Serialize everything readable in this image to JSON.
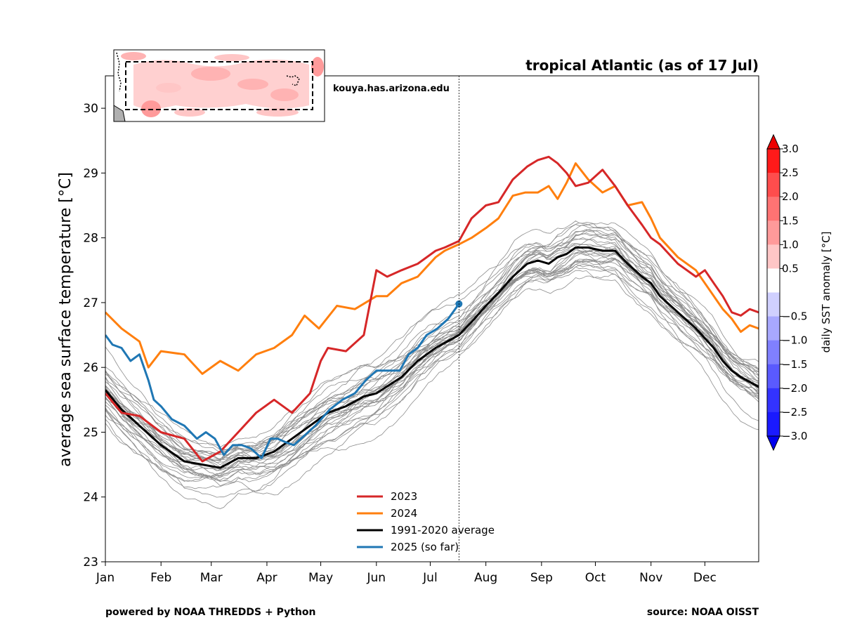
{
  "chart_data": {
    "type": "line",
    "title": "tropical Atlantic (as of 17 Jul)",
    "ylabel": "average sea surface temperature [°C]",
    "xlabel": "",
    "ylim": [
      23,
      30.5
    ],
    "yticks": [
      "23",
      "24",
      "25",
      "26",
      "27",
      "28",
      "29",
      "30"
    ],
    "xlim_day": [
      1,
      365
    ],
    "months": [
      "Jan",
      "Feb",
      "Mar",
      "Apr",
      "May",
      "Jun",
      "Jul",
      "Aug",
      "Sep",
      "Oct",
      "Nov",
      "Dec"
    ],
    "current_day_marker": 198,
    "legend_placement": "lower-center",
    "grid": false,
    "series": [
      {
        "name": "2023",
        "color": "#d62728",
        "width": 3,
        "x": [
          1,
          10,
          20,
          32,
          45,
          55,
          65,
          75,
          85,
          95,
          105,
          115,
          121,
          125,
          135,
          145,
          152,
          158,
          166,
          175,
          185,
          190,
          198,
          205,
          213,
          220,
          228,
          236,
          242,
          248,
          253,
          258,
          263,
          270,
          278,
          285,
          292,
          300,
          305,
          310,
          320,
          330,
          335,
          340,
          345,
          350,
          355,
          360,
          365
        ],
        "y": [
          25.6,
          25.3,
          25.25,
          25.0,
          24.9,
          24.55,
          24.7,
          25.0,
          25.3,
          25.5,
          25.3,
          25.6,
          26.1,
          26.3,
          26.25,
          26.5,
          27.5,
          27.4,
          27.5,
          27.6,
          27.8,
          27.85,
          27.95,
          28.3,
          28.5,
          28.55,
          28.9,
          29.1,
          29.2,
          29.25,
          29.15,
          29.0,
          28.8,
          28.85,
          29.05,
          28.8,
          28.5,
          28.2,
          28.0,
          27.9,
          27.6,
          27.4,
          27.5,
          27.3,
          27.1,
          26.85,
          26.8,
          26.9,
          26.85
        ]
      },
      {
        "name": "2024",
        "color": "#ff7f0e",
        "width": 3,
        "x": [
          1,
          10,
          20,
          25,
          32,
          45,
          55,
          65,
          75,
          85,
          95,
          105,
          112,
          120,
          130,
          140,
          152,
          158,
          166,
          175,
          185,
          190,
          198,
          205,
          213,
          220,
          228,
          235,
          242,
          248,
          253,
          258,
          263,
          270,
          278,
          285,
          292,
          300,
          305,
          310,
          320,
          330,
          340,
          345,
          350,
          355,
          360,
          365
        ],
        "y": [
          26.85,
          26.6,
          26.4,
          26.0,
          26.25,
          26.2,
          25.9,
          26.1,
          25.95,
          26.2,
          26.3,
          26.5,
          26.8,
          26.6,
          26.95,
          26.9,
          27.1,
          27.1,
          27.3,
          27.4,
          27.7,
          27.8,
          27.9,
          28.0,
          28.15,
          28.3,
          28.65,
          28.7,
          28.7,
          28.8,
          28.6,
          28.85,
          29.15,
          28.9,
          28.7,
          28.8,
          28.5,
          28.55,
          28.3,
          28.0,
          27.7,
          27.5,
          27.1,
          26.9,
          26.75,
          26.55,
          26.65,
          26.6
        ]
      },
      {
        "name": "1991-2020 average",
        "color": "#000000",
        "width": 3,
        "x": [
          1,
          10,
          20,
          32,
          45,
          55,
          65,
          75,
          85,
          95,
          105,
          115,
          125,
          135,
          145,
          152,
          166,
          175,
          185,
          198,
          205,
          213,
          220,
          228,
          236,
          242,
          248,
          253,
          258,
          263,
          270,
          278,
          285,
          292,
          300,
          305,
          310,
          320,
          330,
          340,
          345,
          350,
          355,
          365
        ],
        "y": [
          25.65,
          25.35,
          25.1,
          24.8,
          24.55,
          24.5,
          24.45,
          24.6,
          24.6,
          24.7,
          24.9,
          25.1,
          25.3,
          25.4,
          25.55,
          25.6,
          25.85,
          26.1,
          26.3,
          26.5,
          26.7,
          26.95,
          27.15,
          27.4,
          27.6,
          27.65,
          27.6,
          27.7,
          27.75,
          27.85,
          27.85,
          27.8,
          27.8,
          27.6,
          27.4,
          27.3,
          27.1,
          26.85,
          26.6,
          26.3,
          26.1,
          25.95,
          25.85,
          25.7
        ]
      },
      {
        "name": "2025 (so far)",
        "color": "#1f77b4",
        "width": 3,
        "x": [
          1,
          5,
          10,
          15,
          20,
          25,
          28,
          32,
          38,
          45,
          52,
          57,
          62,
          67,
          72,
          77,
          82,
          88,
          93,
          97,
          101,
          106,
          112,
          118,
          126,
          133,
          140,
          146,
          152,
          158,
          165,
          170,
          175,
          180,
          186,
          192,
          198
        ],
        "y": [
          26.5,
          26.35,
          26.3,
          26.1,
          26.2,
          25.8,
          25.5,
          25.4,
          25.2,
          25.1,
          24.9,
          25.0,
          24.9,
          24.65,
          24.8,
          24.8,
          24.75,
          24.6,
          24.9,
          24.9,
          24.85,
          24.8,
          24.95,
          25.1,
          25.35,
          25.5,
          25.6,
          25.8,
          25.95,
          25.95,
          25.95,
          26.2,
          26.3,
          26.5,
          26.6,
          26.75,
          26.98
        ]
      }
    ],
    "colorbar": {
      "label": "daily SST anomaly [°C]",
      "ticks": [
        "3.0",
        "2.5",
        "2.0",
        "1.5",
        "1.0",
        "0.5",
        "−0.5",
        "−1.0",
        "−1.5",
        "−2.0",
        "−2.5",
        "−3.0"
      ],
      "colors": [
        "#ff1a1a",
        "#ff4d4d",
        "#ff7373",
        "#ff9a9a",
        "#ffc6c6",
        "#ffffff",
        "#d0d0ff",
        "#a8a8ff",
        "#8080ff",
        "#5a5aff",
        "#3333ff",
        "#1a1aff"
      ]
    }
  },
  "inset_url": "kouya.has.arizona.edu",
  "credit_left": "powered by NOAA THREDDS + Python",
  "credit_right": "source: NOAA OISST",
  "colors": {
    "climatology_lines": "#8c8c8c"
  }
}
